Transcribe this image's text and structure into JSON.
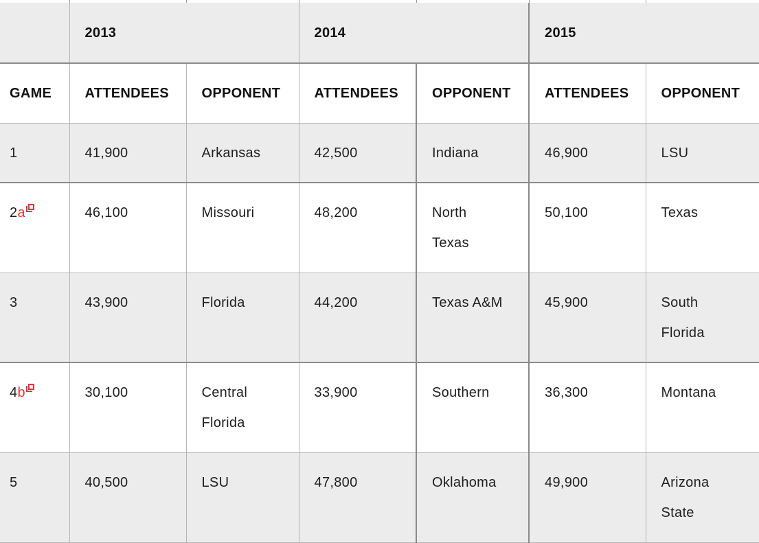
{
  "years": [
    "2013",
    "2014",
    "2015"
  ],
  "headers": {
    "game": "GAME",
    "attendees": "ATTENDEES",
    "opponent": "OPPONENT"
  },
  "rows": [
    {
      "game": "1",
      "note": "",
      "a2013": "41,900",
      "o2013": "Arkansas",
      "a2014": "42,500",
      "o2014": "Indiana",
      "a2015": "46,900",
      "o2015": "LSU"
    },
    {
      "game": "2",
      "note": "a",
      "a2013": "46,100",
      "o2013": "Missouri",
      "a2014": "48,200",
      "o2014": "North Texas",
      "a2015": "50,100",
      "o2015": "Texas"
    },
    {
      "game": "3",
      "note": "",
      "a2013": "43,900",
      "o2013": "Florida",
      "a2014": "44,200",
      "o2014": "Texas A&M",
      "a2015": "45,900",
      "o2015": "South Florida"
    },
    {
      "game": "4",
      "note": "b",
      "a2013": "30,100",
      "o2013": "Central Florida",
      "a2014": "33,900",
      "o2014": "Southern",
      "a2015": "36,300",
      "o2015": "Montana"
    },
    {
      "game": "5",
      "note": "",
      "a2013": "40,500",
      "o2013": "LSU",
      "a2014": "47,800",
      "o2014": "Oklahoma",
      "a2015": "49,900",
      "o2015": "Arizona State"
    }
  ]
}
